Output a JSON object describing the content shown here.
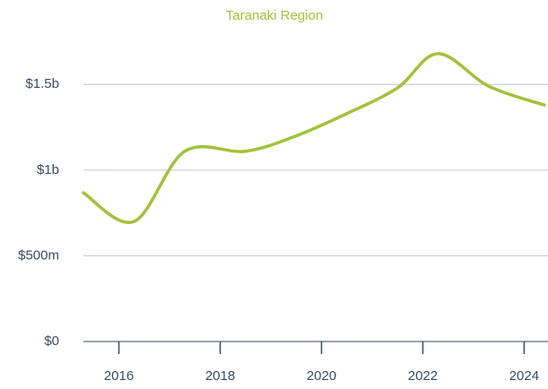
{
  "chart_data": {
    "type": "line",
    "title": "Taranaki Region",
    "x": [
      2015.3,
      2016.3,
      2017.3,
      2018.5,
      2019.5,
      2020.5,
      2021.5,
      2022.3,
      2023.3,
      2024.4
    ],
    "series": [
      {
        "name": "Taranaki Region",
        "color": "#a2c238",
        "values": [
          868000000,
          700000000,
          1110000000,
          1110000000,
          1200000000,
          1330000000,
          1480000000,
          1680000000,
          1490000000,
          1380000000
        ]
      }
    ],
    "xlim": [
      2015.3,
      2024.4
    ],
    "xticks": [
      2016,
      2018,
      2020,
      2022,
      2024
    ],
    "ylim": [
      0,
      1700000000
    ],
    "yticks": [
      {
        "value": 0,
        "label": "$0"
      },
      {
        "value": 500000000,
        "label": "$500m"
      },
      {
        "value": 1000000000,
        "label": "$1b"
      },
      {
        "value": 1500000000,
        "label": "$1.5b"
      }
    ],
    "grid": true
  }
}
